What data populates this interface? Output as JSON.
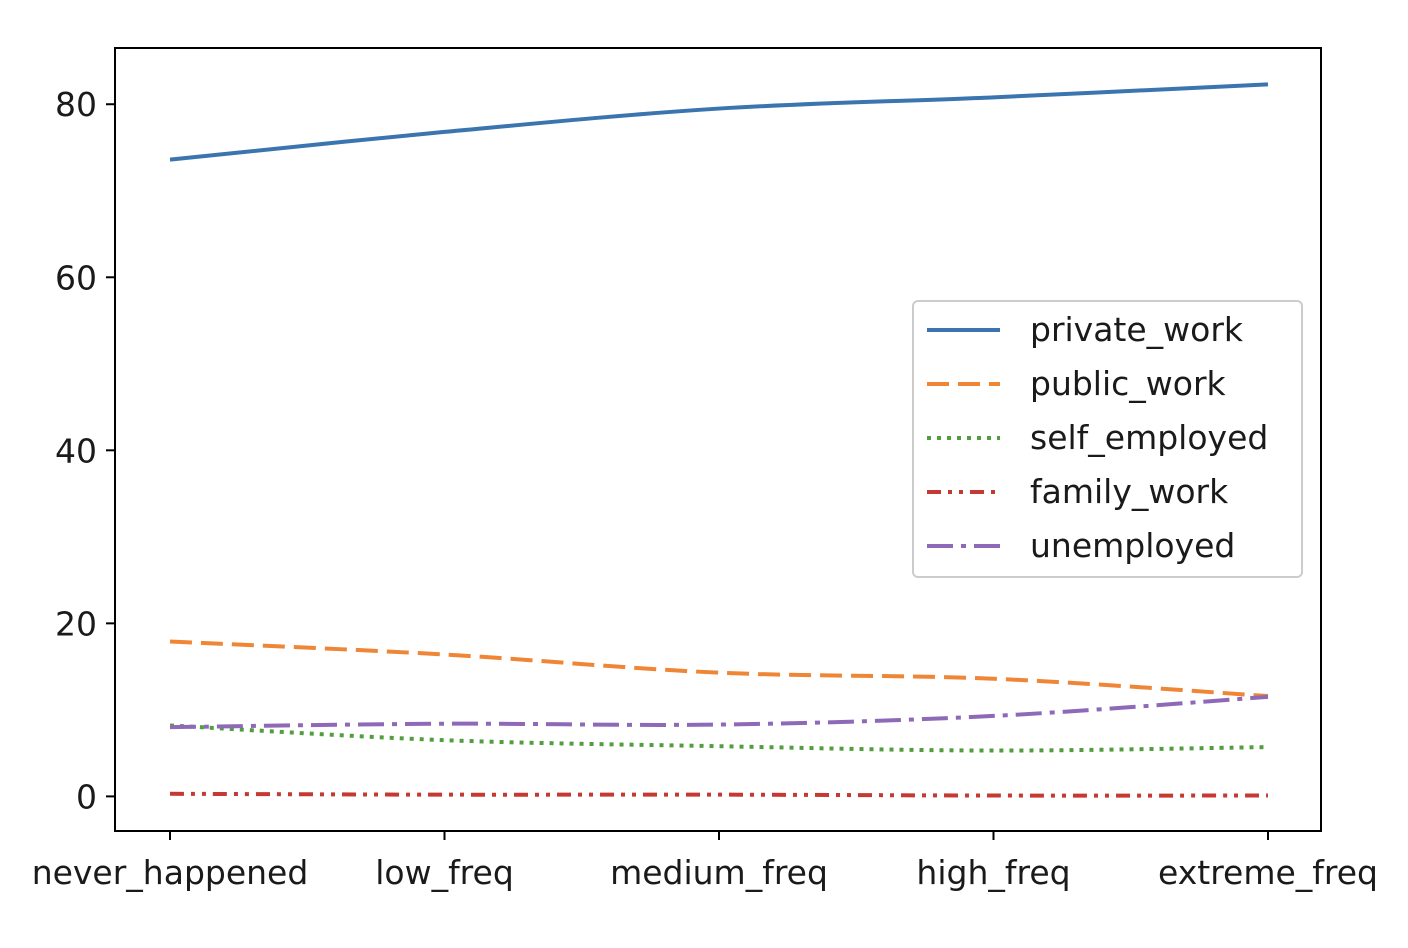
{
  "chart_data": {
    "type": "line",
    "title": "",
    "xlabel": "",
    "ylabel": "",
    "categories": [
      "never_happened",
      "low_freq",
      "medium_freq",
      "high_freq",
      "extreme_freq"
    ],
    "ylim": [
      -4,
      86.5
    ],
    "yticks": [
      0,
      20,
      40,
      60,
      80
    ],
    "grid": false,
    "legend_position": "center-right",
    "series": [
      {
        "name": "private_work",
        "values": [
          73.6,
          76.8,
          79.5,
          80.8,
          82.3
        ],
        "color": "#3a75af",
        "dash": "solid"
      },
      {
        "name": "public_work",
        "values": [
          17.9,
          16.4,
          14.3,
          13.6,
          11.6
        ],
        "color": "#ef8636",
        "dash": "dashed"
      },
      {
        "name": "self_employed",
        "values": [
          8.2,
          6.5,
          5.8,
          5.3,
          5.7
        ],
        "color": "#529e3e",
        "dash": "dotted"
      },
      {
        "name": "family_work",
        "values": [
          0.3,
          0.2,
          0.2,
          0.1,
          0.1
        ],
        "color": "#c53932",
        "dash": "dashdotdot"
      },
      {
        "name": "unemployed",
        "values": [
          8.0,
          8.4,
          8.3,
          9.3,
          11.5
        ],
        "color": "#8d69b8",
        "dash": "dashdot"
      }
    ]
  }
}
